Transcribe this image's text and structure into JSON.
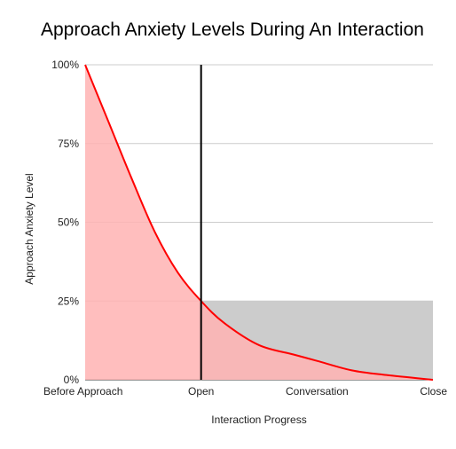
{
  "chart_data": {
    "type": "area",
    "title": "Approach Anxiety Levels During An Interaction",
    "xlabel": "Interaction Progress",
    "ylabel": "Approach Anxiety Level",
    "categories": [
      "Before Approach",
      "Open",
      "Conversation",
      "Close"
    ],
    "ylim": [
      0,
      100
    ],
    "yticks": [
      "0%",
      "25%",
      "50%",
      "75%",
      "100%"
    ],
    "grid": true,
    "series": [
      {
        "color": "#ff0000",
        "fill": "#ffb3b3",
        "points": [
          {
            "x": 0,
            "y": 100
          },
          {
            "x": 0.2,
            "y": 82
          },
          {
            "x": 0.4,
            "y": 64
          },
          {
            "x": 0.6,
            "y": 47
          },
          {
            "x": 0.8,
            "y": 34
          },
          {
            "x": 1,
            "y": 25
          },
          {
            "x": 1.2,
            "y": 18
          },
          {
            "x": 1.5,
            "y": 11
          },
          {
            "x": 1.8,
            "y": 8
          },
          {
            "x": 2,
            "y": 6
          },
          {
            "x": 2.3,
            "y": 3
          },
          {
            "x": 2.6,
            "y": 1.5
          },
          {
            "x": 3,
            "y": 0
          }
        ]
      }
    ],
    "annotations": {
      "vertical_line_at": 1,
      "reference_band": {
        "x_from": 1,
        "x_to": 3,
        "y_from": 0,
        "y_to": 25,
        "color": "#cccccc"
      }
    }
  }
}
